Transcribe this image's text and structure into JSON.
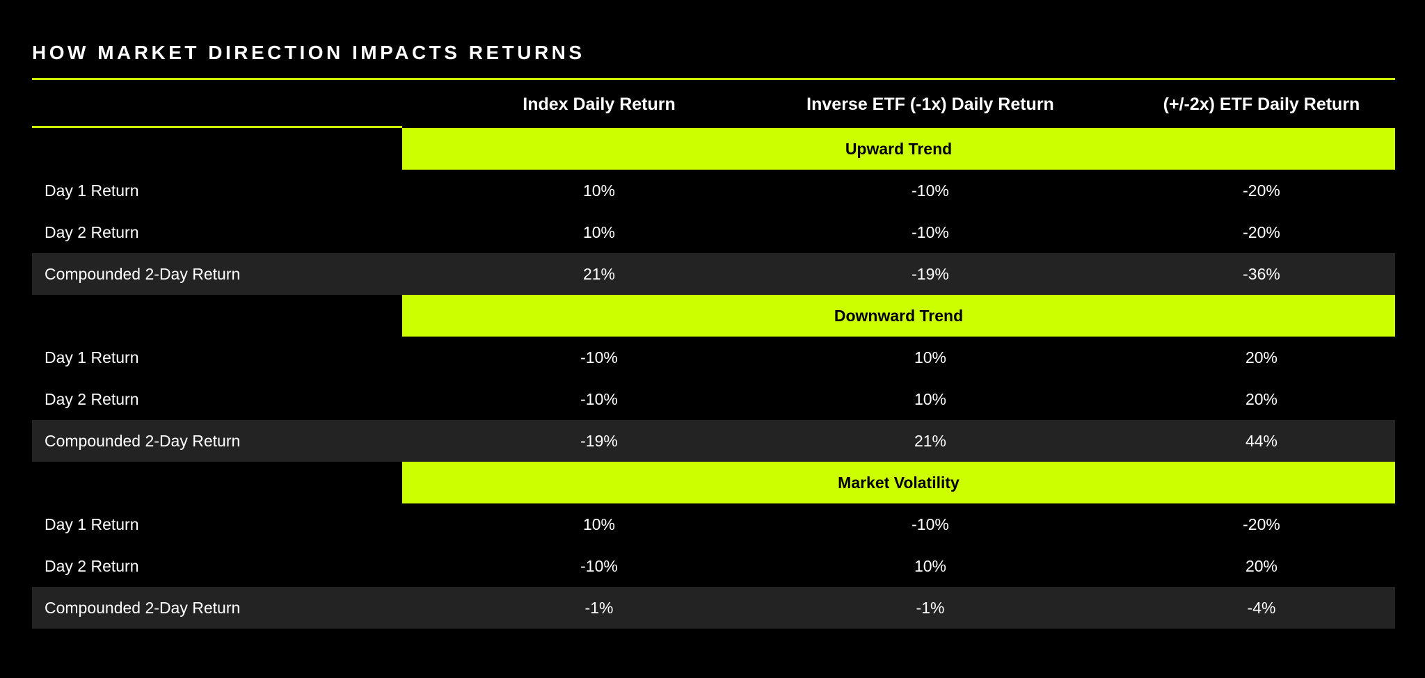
{
  "title": "HOW MARKET DIRECTION IMPACTS RETURNS",
  "colors": {
    "accent": "#CCFF00",
    "background": "#000000",
    "compound_row": "#232323",
    "text": "#FFFFFF"
  },
  "chart_data": {
    "type": "table",
    "title": "HOW MARKET DIRECTION IMPACTS RETURNS",
    "columns": [
      "Index Daily Return",
      "Inverse ETF (-1x) Daily Return",
      "(+/-2x) ETF Daily Return"
    ],
    "groups": [
      {
        "name": "Upward Trend",
        "rows": [
          {
            "label": "Day 1 Return",
            "values": [
              "10%",
              "-10%",
              "-20%"
            ]
          },
          {
            "label": "Day 2 Return",
            "values": [
              "10%",
              "-10%",
              "-20%"
            ]
          },
          {
            "label": "Compounded 2-Day Return",
            "values": [
              "21%",
              "-19%",
              "-36%"
            ]
          }
        ]
      },
      {
        "name": "Downward Trend",
        "rows": [
          {
            "label": "Day 1 Return",
            "values": [
              "-10%",
              "10%",
              "20%"
            ]
          },
          {
            "label": "Day 2 Return",
            "values": [
              "-10%",
              "10%",
              "20%"
            ]
          },
          {
            "label": "Compounded 2-Day Return",
            "values": [
              "-19%",
              "21%",
              "44%"
            ]
          }
        ]
      },
      {
        "name": "Market Volatility",
        "rows": [
          {
            "label": "Day 1 Return",
            "values": [
              "10%",
              "-10%",
              "-20%"
            ]
          },
          {
            "label": "Day 2 Return",
            "values": [
              "-10%",
              "10%",
              "20%"
            ]
          },
          {
            "label": "Compounded 2-Day Return",
            "values": [
              "-1%",
              "-1%",
              "-4%"
            ]
          }
        ]
      }
    ]
  }
}
